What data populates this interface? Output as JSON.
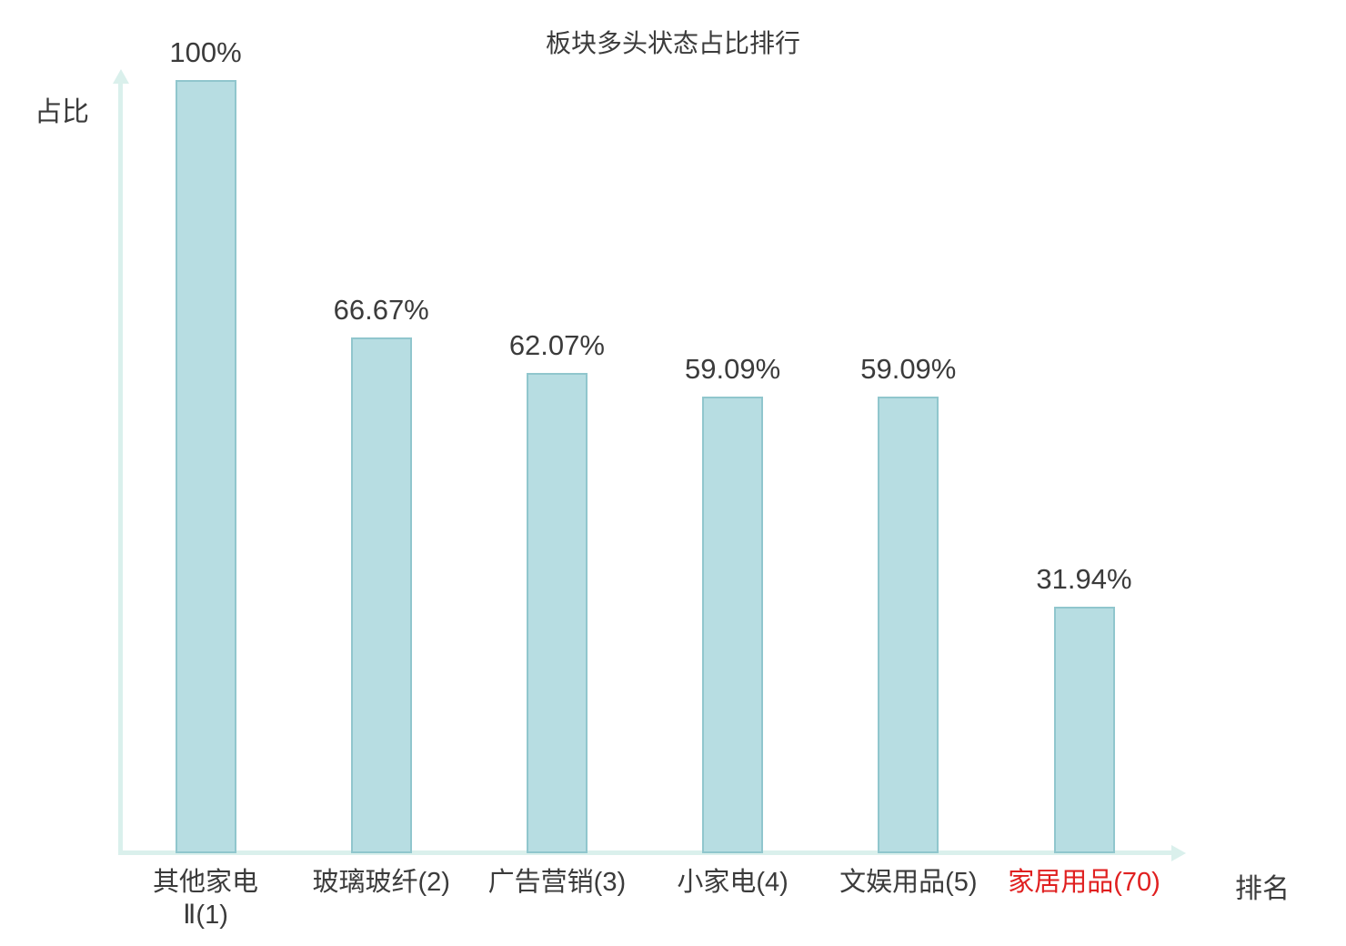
{
  "chart_data": {
    "type": "bar",
    "title": "板块多头状态占比排行",
    "xlabel": "排名",
    "ylabel": "占比",
    "ylim": [
      0,
      100
    ],
    "grid": false,
    "legend": "none",
    "categories": [
      "其他家电Ⅱ(1)",
      "玻璃玻纤(2)",
      "广告营销(3)",
      "小家电(4)",
      "文娱用品(5)",
      "家居用品(70)"
    ],
    "category_lines": [
      [
        "其他家电",
        "Ⅱ(1)"
      ],
      [
        "玻璃玻纤(2)"
      ],
      [
        "广告营销(3)"
      ],
      [
        "小家电(4)"
      ],
      [
        "文娱用品(5)"
      ],
      [
        "家居用品(70)"
      ]
    ],
    "values": [
      100,
      66.67,
      62.07,
      59.09,
      59.09,
      31.94
    ],
    "value_labels": [
      "100%",
      "66.67%",
      "62.07%",
      "59.09%",
      "59.09%",
      "31.94%"
    ],
    "highlight_index": 5,
    "colors": {
      "bar_fill": "#b7dde2",
      "bar_border": "#90c6cd",
      "axis": "#daf0ec",
      "text": "#3b3b3b",
      "highlight_text": "#e02020"
    }
  }
}
